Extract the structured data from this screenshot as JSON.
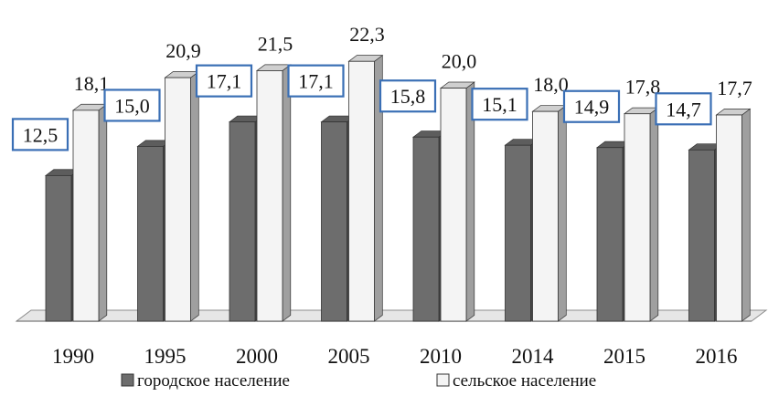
{
  "chart_data": {
    "type": "bar",
    "categories": [
      "1990",
      "1995",
      "2000",
      "2005",
      "2010",
      "2014",
      "2015",
      "2016"
    ],
    "series": [
      {
        "name": "городское население",
        "values": [
          12.5,
          15.0,
          17.1,
          17.1,
          15.8,
          15.1,
          14.9,
          14.7
        ],
        "labels": [
          "12,5",
          "15,0",
          "17,1",
          "17,1",
          "15,8",
          "15,1",
          "14,9",
          "14,7"
        ],
        "color": "#6d6d6d"
      },
      {
        "name": "сельское население",
        "values": [
          18.1,
          20.9,
          21.5,
          22.3,
          20.0,
          18.0,
          17.8,
          17.7
        ],
        "labels": [
          "18,1",
          "20,9",
          "21,5",
          "22,3",
          "20,0",
          "18,0",
          "17,8",
          "17,7"
        ],
        "color": "#f4f4f4"
      }
    ],
    "ylim": [
      0,
      26
    ],
    "grid": false,
    "three_d": true,
    "legend_position": "bottom",
    "label_box_color": "#3a6fb5"
  }
}
